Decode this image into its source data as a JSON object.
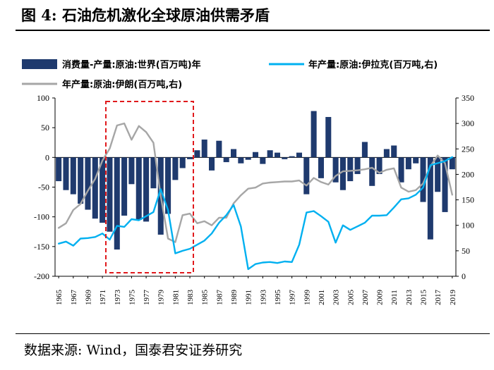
{
  "figure": {
    "title": "图 4:  石油危机激化全球原油供需矛盾",
    "source": "数据来源:  Wind，国泰君安证券研究"
  },
  "chart_data": {
    "type": "bar+line",
    "title": "石油危机激化全球原油供需矛盾",
    "left_axis": {
      "min": -200,
      "max": 100,
      "ticks": [
        100,
        50,
        0,
        -50,
        -100,
        -150,
        -200
      ]
    },
    "right_axis": {
      "min": 0,
      "max": 350,
      "ticks": [
        350,
        300,
        250,
        200,
        150,
        100,
        50,
        0
      ]
    },
    "years": [
      1965,
      1966,
      1967,
      1968,
      1969,
      1970,
      1971,
      1972,
      1973,
      1974,
      1975,
      1976,
      1977,
      1978,
      1979,
      1980,
      1981,
      1982,
      1983,
      1984,
      1985,
      1986,
      1987,
      1988,
      1989,
      1990,
      1991,
      1992,
      1993,
      1994,
      1995,
      1996,
      1997,
      1998,
      1999,
      2000,
      2001,
      2002,
      2003,
      2004,
      2005,
      2006,
      2007,
      2008,
      2009,
      2010,
      2011,
      2012,
      2013,
      2014,
      2015,
      2016,
      2017,
      2018,
      2019
    ],
    "x_tick_labels": [
      "1965",
      "1967",
      "1969",
      "1971",
      "1973",
      "1975",
      "1977",
      "1979",
      "1981",
      "1983",
      "1985",
      "1987",
      "1989",
      "1991",
      "1993",
      "1995",
      "1997",
      "1999",
      "2001",
      "2003",
      "2005",
      "2007",
      "2009",
      "2011",
      "2013",
      "2015",
      "2017",
      "2019"
    ],
    "series": [
      {
        "name": "消费量-产量:原油:世界(百万吨)年",
        "type": "bar",
        "axis": "left",
        "color": "#1f3a6e",
        "values": [
          -40,
          -55,
          -62,
          -78,
          -88,
          -103,
          -110,
          -125,
          -155,
          -98,
          -45,
          -105,
          -108,
          -52,
          -130,
          -95,
          -38,
          -18,
          -3,
          12,
          30,
          -22,
          28,
          -8,
          14,
          -10,
          -4,
          9,
          -11,
          12,
          8,
          -3,
          2,
          8,
          -62,
          78,
          -35,
          68,
          -42,
          -55,
          -40,
          -28,
          26,
          -48,
          -28,
          14,
          20,
          -42,
          -20,
          -10,
          -75,
          -138,
          -58,
          -92,
          -20
        ]
      },
      {
        "name": "年产量:原油:伊拉克(百万吨,右)",
        "type": "line",
        "axis": "right",
        "color": "#00b0f0",
        "values": [
          64,
          68,
          60,
          74,
          75,
          77,
          84,
          72,
          99,
          97,
          112,
          110,
          118,
          126,
          171,
          130,
          45,
          50,
          54,
          62,
          70,
          84,
          105,
          120,
          140,
          98,
          14,
          24,
          27,
          28,
          26,
          29,
          28,
          62,
          125,
          128,
          118,
          107,
          66,
          100,
          91,
          98,
          105,
          119,
          119,
          120,
          135,
          151,
          153,
          160,
          174,
          218,
          222,
          226,
          234
        ]
      },
      {
        "name": "年产量:原油:伊朗(百万吨,右)",
        "type": "line",
        "axis": "right",
        "color": "#a6a6a6",
        "values": [
          95,
          104,
          130,
          142,
          168,
          191,
          227,
          251,
          296,
          300,
          268,
          295,
          283,
          262,
          158,
          74,
          67,
          120,
          123,
          104,
          108,
          100,
          115,
          115,
          143,
          159,
          172,
          174,
          182,
          184,
          185,
          186,
          186,
          188,
          178,
          193,
          185,
          180,
          197,
          206,
          207,
          208,
          210,
          213,
          203,
          209,
          212,
          174,
          166,
          169,
          182,
          216,
          237,
          222,
          160
        ]
      }
    ],
    "annotation": "dashed red box highlighting 1973–1983 oil crisis period"
  }
}
